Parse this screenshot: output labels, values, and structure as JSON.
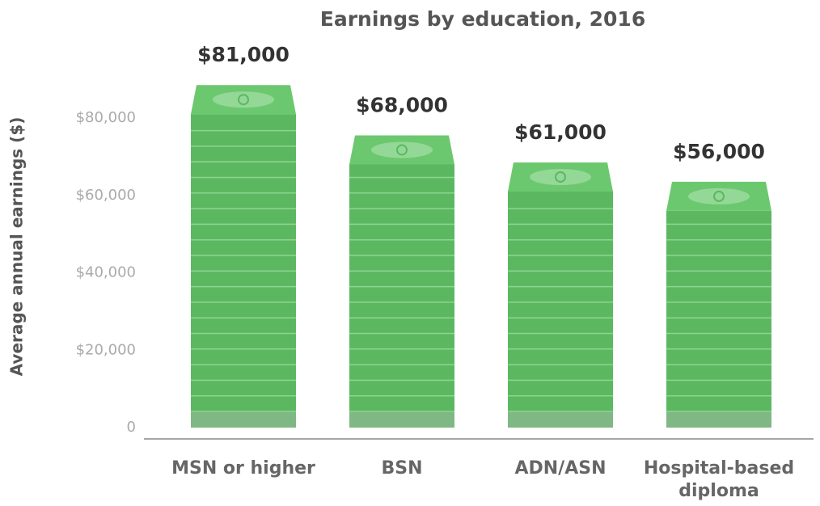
{
  "chart_data": {
    "type": "bar",
    "title": "Earnings by education, 2016",
    "y_label": "Average annual earnings ($)",
    "categories": [
      "MSN or higher",
      "BSN",
      "ADN/ASN",
      "Hospital-based diploma"
    ],
    "values": [
      81000,
      68000,
      61000,
      56000
    ],
    "value_labels": [
      "$81,000",
      "$68,000",
      "$61,000",
      "$56,000"
    ],
    "color": "#5cb860",
    "ylim": [
      0,
      80000
    ],
    "yticks": [
      0,
      {
        "value": 20000,
        "label": "$20,000"
      },
      {
        "value": 40000,
        "label": "$40,000"
      },
      {
        "value": 60000,
        "label": "$60,000"
      },
      {
        "value": 80000,
        "label": "$80,000"
      }
    ],
    "grid": false
  }
}
